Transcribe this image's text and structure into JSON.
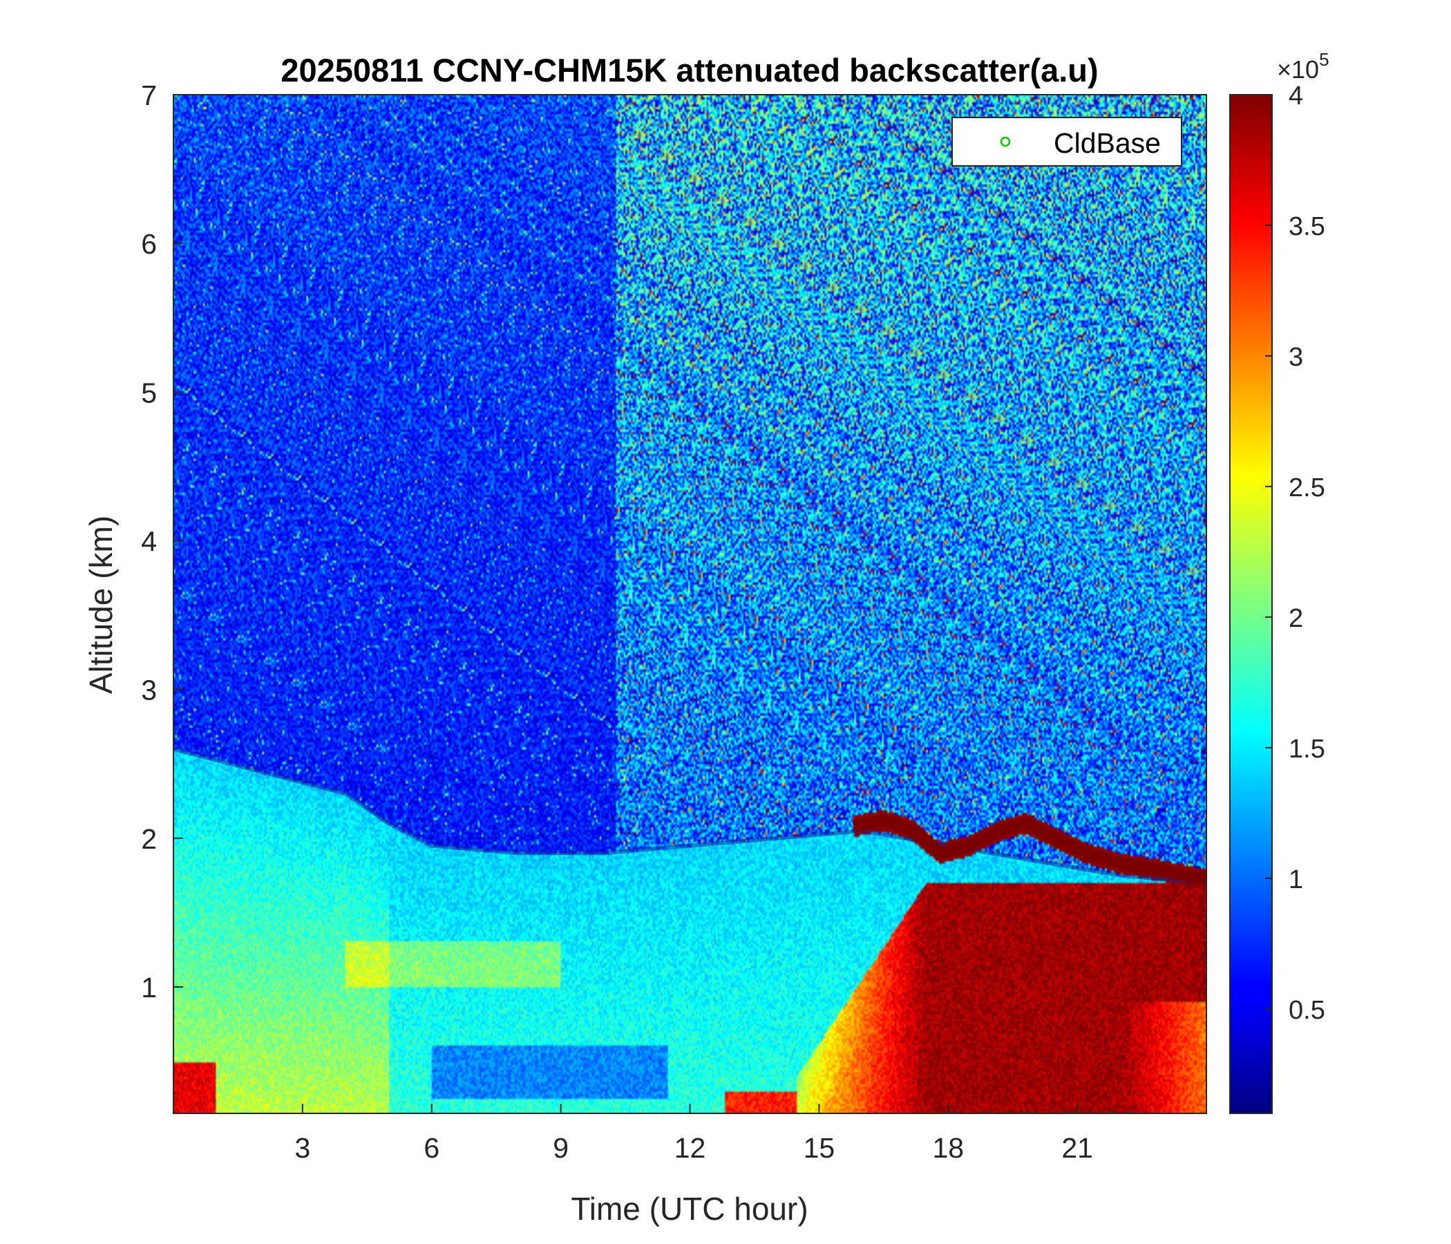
{
  "chart_data": {
    "type": "heatmap",
    "title": "20250811 CCNY-CHM15K attenuated backscatter(a.u)",
    "xlabel": "Time (UTC hour)",
    "ylabel": "Altitude (km)",
    "xlim": [
      0,
      24
    ],
    "ylim": [
      0.15,
      7
    ],
    "xticks": [
      3,
      6,
      9,
      12,
      15,
      18,
      21
    ],
    "yticks": [
      1,
      2,
      3,
      4,
      5,
      6,
      7
    ],
    "colorbar": {
      "colormap": "jet",
      "clim": [
        0.1,
        4
      ],
      "ticks": [
        0.5,
        1,
        1.5,
        2,
        2.5,
        3,
        3.5,
        4
      ],
      "exponent_base": "×10",
      "exponent": "5"
    },
    "legend": {
      "placement": "top-right",
      "entries": [
        {
          "label": "CldBase",
          "marker": "circle",
          "color": "#00cc00"
        }
      ]
    },
    "features": {
      "boundary_layer_top_km": [
        {
          "x": 0,
          "y": 2.6
        },
        {
          "x": 2,
          "y": 2.45
        },
        {
          "x": 4,
          "y": 2.3
        },
        {
          "x": 5,
          "y": 2.1
        },
        {
          "x": 6,
          "y": 1.95
        },
        {
          "x": 8,
          "y": 1.9
        },
        {
          "x": 10,
          "y": 1.9
        },
        {
          "x": 12,
          "y": 1.95
        },
        {
          "x": 14,
          "y": 2.0
        },
        {
          "x": 16,
          "y": 2.05
        },
        {
          "x": 18,
          "y": 1.95
        },
        {
          "x": 20,
          "y": 1.85
        },
        {
          "x": 22,
          "y": 1.75
        },
        {
          "x": 24,
          "y": 1.7
        }
      ],
      "cloud_layer_km": [
        {
          "x": 15.8,
          "y": 2.08
        },
        {
          "x": 16.5,
          "y": 2.12
        },
        {
          "x": 17.2,
          "y": 2.05
        },
        {
          "x": 17.8,
          "y": 1.9
        },
        {
          "x": 18.5,
          "y": 1.95
        },
        {
          "x": 19.2,
          "y": 2.05
        },
        {
          "x": 19.8,
          "y": 2.1
        },
        {
          "x": 20.5,
          "y": 2.0
        },
        {
          "x": 21.2,
          "y": 1.9
        },
        {
          "x": 22,
          "y": 1.83
        },
        {
          "x": 23,
          "y": 1.78
        },
        {
          "x": 24,
          "y": 1.72
        }
      ]
    }
  }
}
